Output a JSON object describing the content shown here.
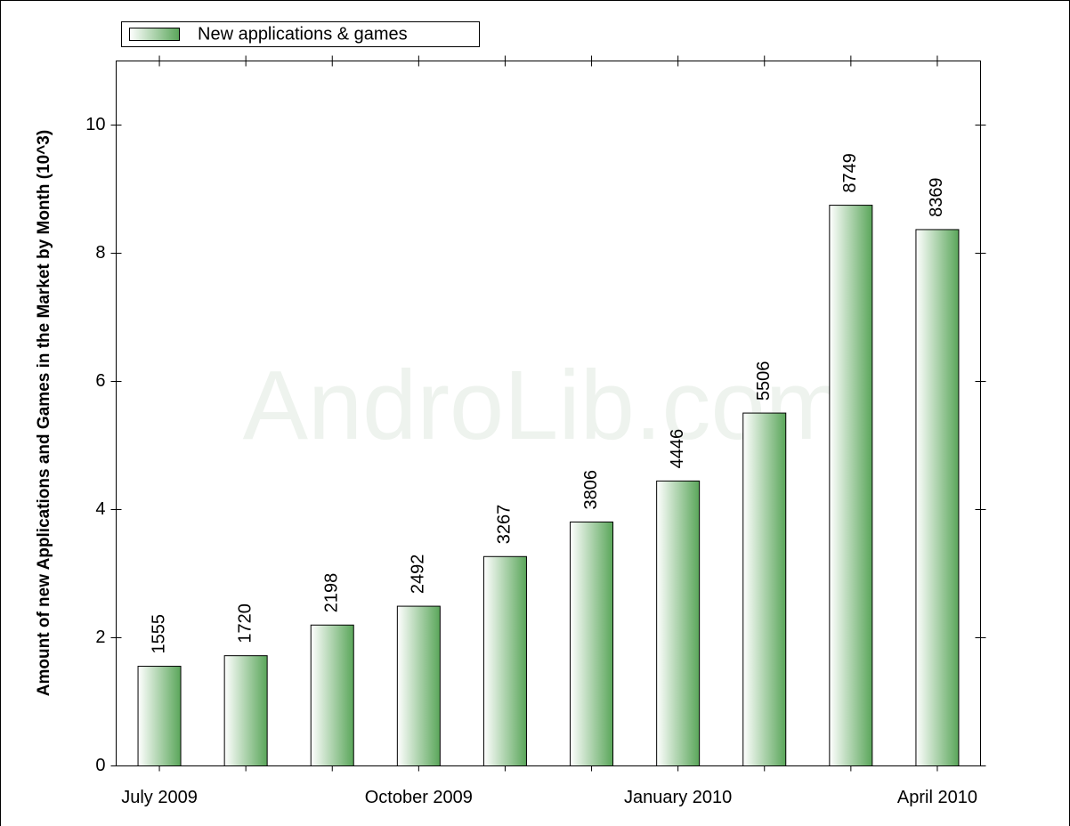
{
  "chart_data": {
    "type": "bar",
    "y_label": "Amount of new Applications and Games in the Market by Month (10^3)",
    "watermark": "AndroLib.com",
    "categories": [
      "July 2009",
      null,
      null,
      "October 2009",
      null,
      null,
      "January 2010",
      null,
      null,
      "April 2010"
    ],
    "series": [
      {
        "name": "New applications & games",
        "color": "#5aa65a",
        "values": [
          1.555,
          1.72,
          2.198,
          2.492,
          3.267,
          3.806,
          4.446,
          5.506,
          8.749,
          8.369
        ],
        "value_labels": [
          "1555",
          "1720",
          "2198",
          "2492",
          "3267",
          "3806",
          "4446",
          "5506",
          "8749",
          "8369"
        ]
      }
    ],
    "ylim": [
      0,
      11
    ],
    "yticks": [
      0,
      2,
      4,
      6,
      8,
      10
    ],
    "legend": "top-left"
  }
}
